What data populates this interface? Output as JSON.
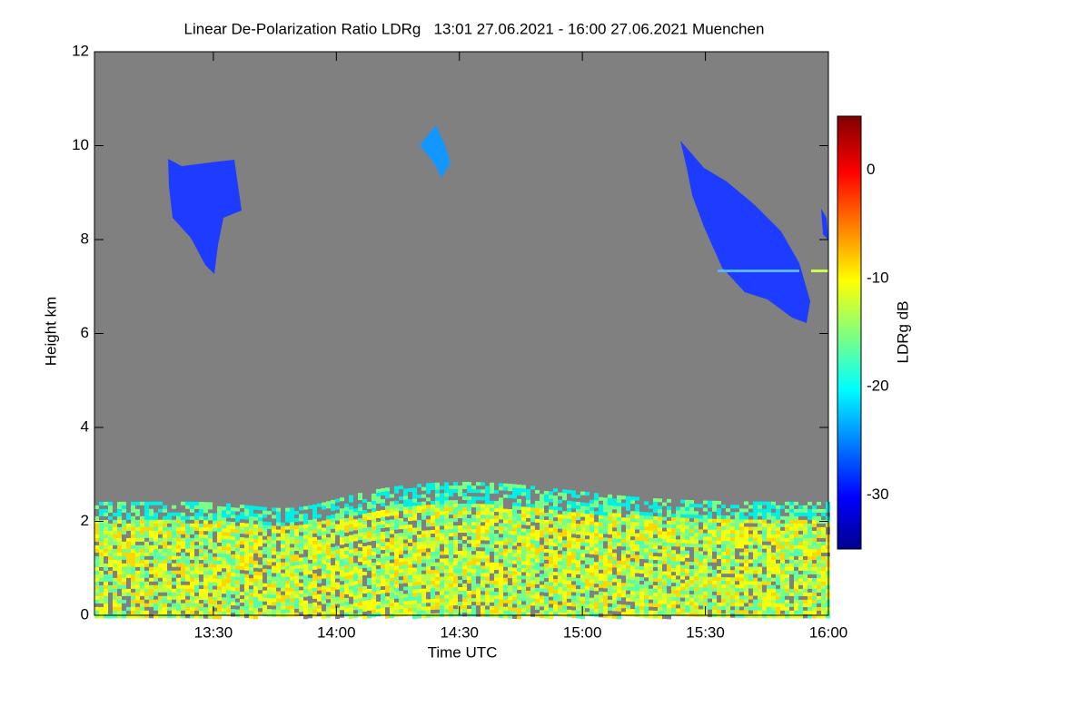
{
  "chart_data": {
    "type": "heatmap",
    "title": "Linear De-Polarization Ratio LDRg   13:01 27.06.2021 - 16:00 27.06.2021 Muenchen",
    "x_label": "Time UTC",
    "y_label": "Height km",
    "colorbar_label": "LDRg dB",
    "xlim": [
      781,
      960
    ],
    "xticks": [
      {
        "value": 810,
        "label": "13:30"
      },
      {
        "value": 840,
        "label": "14:00"
      },
      {
        "value": 870,
        "label": "14:30"
      },
      {
        "value": 900,
        "label": "15:00"
      },
      {
        "value": 930,
        "label": "15:30"
      },
      {
        "value": 960,
        "label": "16:00"
      }
    ],
    "ylim": [
      0,
      12
    ],
    "yticks": [
      0,
      2,
      4,
      6,
      8,
      10,
      12
    ],
    "clim": [
      -35,
      5
    ],
    "cticks": [
      0,
      -10,
      -20,
      -30
    ],
    "background": "#808080"
  }
}
